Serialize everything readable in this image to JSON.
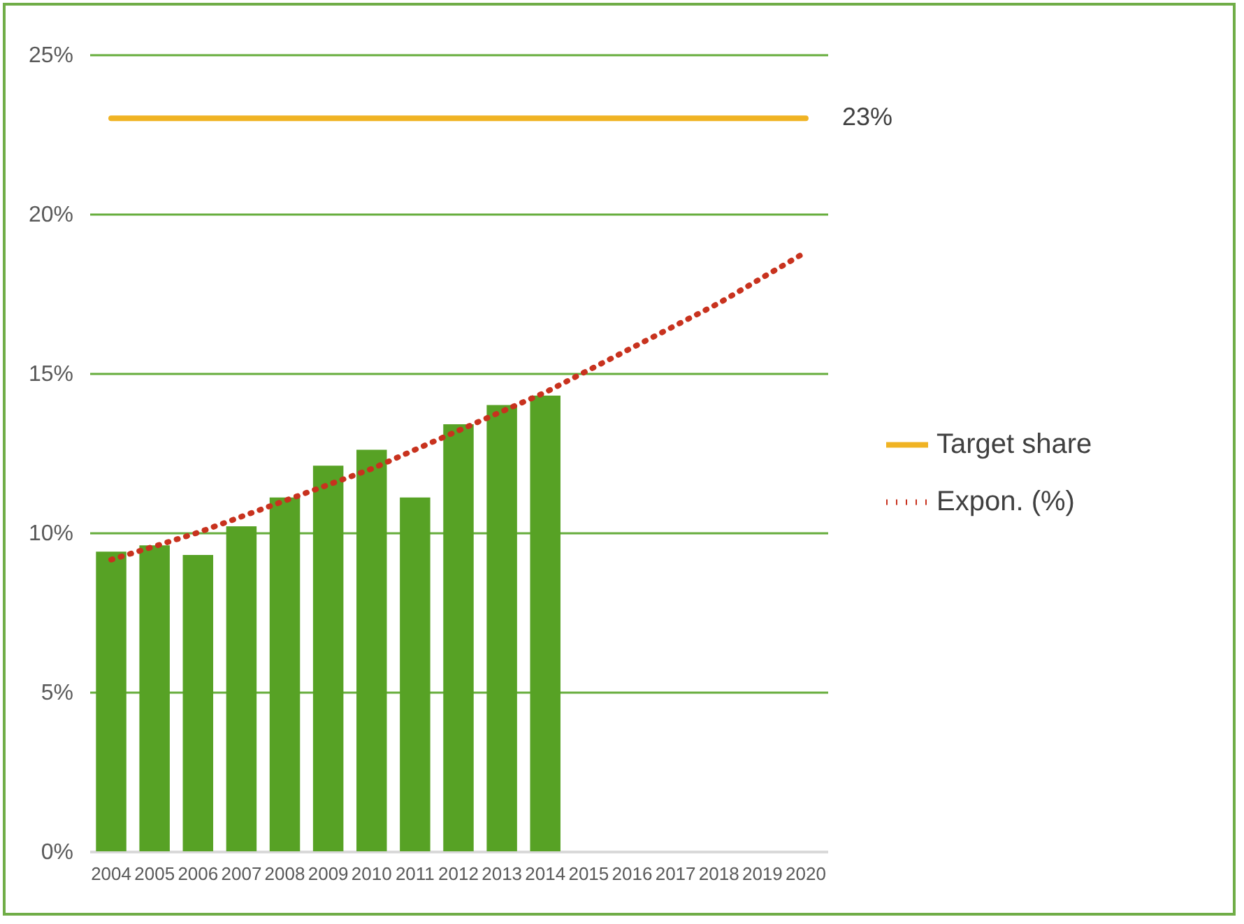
{
  "chart_data": {
    "type": "bar",
    "categories": [
      "2004",
      "2005",
      "2006",
      "2007",
      "2008",
      "2009",
      "2010",
      "2011",
      "2012",
      "2013",
      "2014",
      "2015",
      "2016",
      "2017",
      "2018",
      "2019",
      "2020"
    ],
    "series": [
      {
        "color": "#57a225",
        "values": [
          9.4,
          9.6,
          9.3,
          10.2,
          11.1,
          12.1,
          12.6,
          11.1,
          13.4,
          14.0,
          14.3,
          null,
          null,
          null,
          null,
          null,
          null
        ]
      },
      {
        "type": "line",
        "name": "Target share",
        "color": "#f0b323",
        "line_style": "solid",
        "values": [
          23,
          23,
          23,
          23,
          23,
          23,
          23,
          23,
          23,
          23,
          23,
          23,
          23,
          23,
          23,
          23,
          23
        ],
        "value_labels": [
          null,
          null,
          null,
          null,
          null,
          null,
          null,
          null,
          null,
          null,
          null,
          null,
          null,
          null,
          null,
          null,
          "23%"
        ]
      },
      {
        "type": "line",
        "name": "Expon. (%)",
        "color": "#c8321e",
        "line_style": "dotted",
        "values": [
          9.15,
          9.57,
          10.0,
          10.5,
          11.0,
          11.5,
          12.0,
          12.6,
          13.2,
          13.8,
          14.4,
          15.1,
          15.8,
          16.5,
          17.2,
          18.0,
          18.8
        ]
      }
    ],
    "ylim": [
      0,
      25
    ],
    "yticks": [
      {
        "value": 0,
        "label": "0%"
      },
      {
        "value": 5,
        "label": "5%"
      },
      {
        "value": 10,
        "label": "10%"
      },
      {
        "value": 15,
        "label": "15%"
      },
      {
        "value": 20,
        "label": "20%"
      },
      {
        "value": 25,
        "label": "25%"
      }
    ],
    "grid": "y",
    "legend": "right",
    "marker": "none"
  }
}
